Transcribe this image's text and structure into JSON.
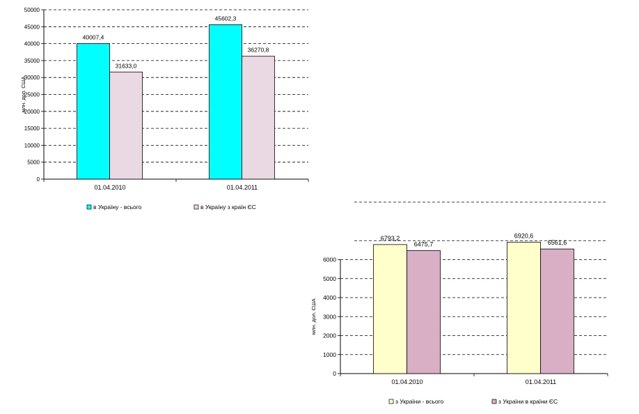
{
  "chart_data": [
    {
      "type": "bar",
      "title": "",
      "xlabel": "",
      "ylabel": "млн. дол. США",
      "categories": [
        "01.04.2010",
        "01.04.2011"
      ],
      "series": [
        {
          "name": "в Україну - всього",
          "values": [
            40007.4,
            45602.3
          ],
          "value_labels": [
            "40007,4",
            "45602,3"
          ],
          "color": "#00ffff"
        },
        {
          "name": "в Україну з країн ЄС",
          "values": [
            31633.0,
            36270.8
          ],
          "value_labels": [
            "31633,0",
            "36270,8"
          ],
          "color": "#ead9e3"
        }
      ],
      "ylim": [
        0,
        50000
      ],
      "yticks": [
        0,
        5000,
        10000,
        15000,
        20000,
        25000,
        30000,
        35000,
        40000,
        45000,
        50000
      ],
      "grid": true,
      "legend": "bottom"
    },
    {
      "type": "bar",
      "title": "",
      "xlabel": "",
      "ylabel": "млн. дол. США",
      "categories": [
        "01.04.2010",
        "01.04.2011"
      ],
      "series": [
        {
          "name": "з України - всього",
          "values": [
            6793.2,
            6920.6
          ],
          "value_labels": [
            "6793,2",
            "6920,6"
          ],
          "color": "#ffffcc"
        },
        {
          "name": "з України в країни ЄС",
          "values": [
            6475.7,
            6561.6
          ],
          "value_labels": [
            "6475,7",
            "6561,6"
          ],
          "color": "#d8afc4"
        }
      ],
      "ylim": [
        0,
        8000
      ],
      "yticks": [
        0,
        1000,
        2000,
        3000,
        4000,
        5000,
        6000
      ],
      "grid": true,
      "legend": "bottom"
    }
  ]
}
